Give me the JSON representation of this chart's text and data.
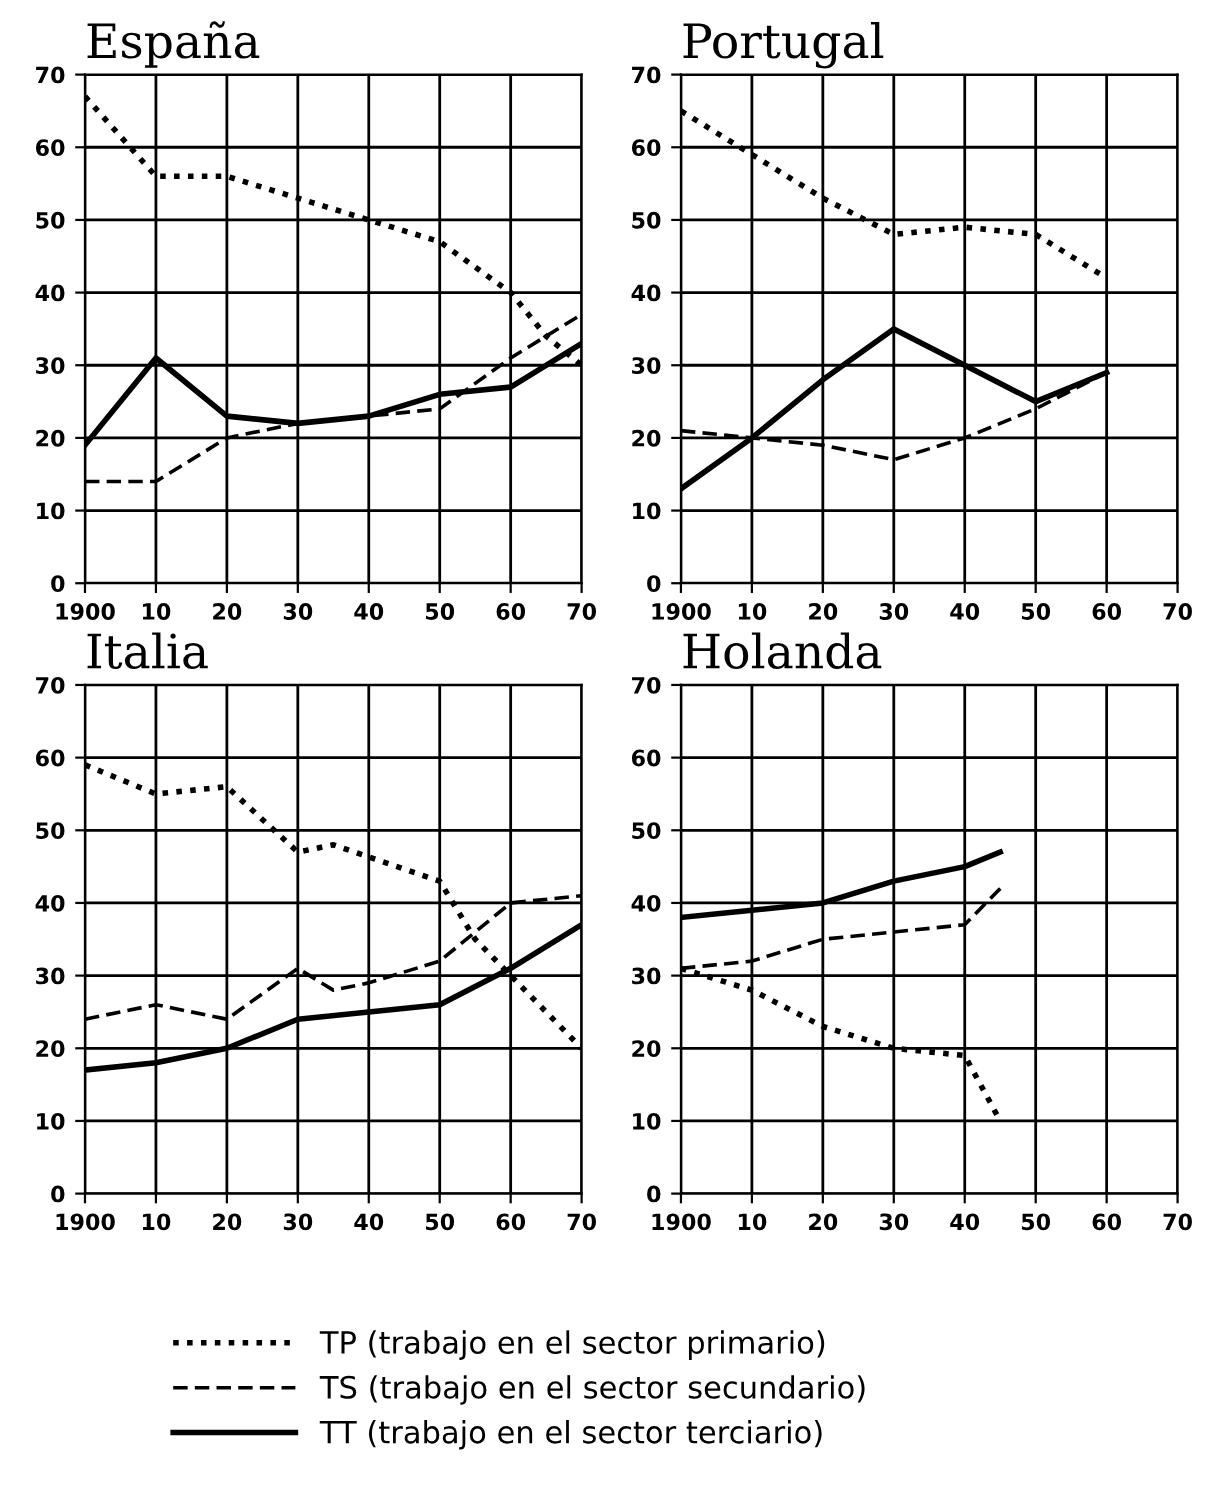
{
  "chart_data": [
    {
      "type": "line",
      "title": "España",
      "x": [
        1900,
        1910,
        1920,
        1930,
        1940,
        1950,
        1960,
        1970
      ],
      "xlim": [
        1900,
        1970
      ],
      "xticks": [
        {
          "value": 1900,
          "label": "1900"
        },
        {
          "value": 1910,
          "label": "10"
        },
        {
          "value": 1920,
          "label": "20"
        },
        {
          "value": 1930,
          "label": "30"
        },
        {
          "value": 1940,
          "label": "40"
        },
        {
          "value": 1950,
          "label": "50"
        },
        {
          "value": 1960,
          "label": "60"
        },
        {
          "value": 1970,
          "label": "70"
        }
      ],
      "ylim": [
        0,
        70
      ],
      "yticks": [
        0,
        10,
        20,
        30,
        40,
        50,
        60,
        70
      ],
      "grid": true,
      "legend": false,
      "series": [
        {
          "color": "#000000",
          "line_style": "dotted",
          "x": [
            1900,
            1910,
            1920,
            1930,
            1940,
            1950,
            1960,
            1965,
            1970
          ],
          "values": [
            67,
            56,
            56,
            53,
            50,
            47,
            40,
            34,
            30
          ]
        },
        {
          "color": "#000000",
          "line_style": "dashed",
          "values": [
            14,
            14,
            20,
            22,
            23,
            24,
            31,
            37
          ]
        },
        {
          "color": "#000000",
          "line_style": "solid",
          "values": [
            19,
            31,
            23,
            22,
            23,
            26,
            27,
            33
          ]
        }
      ]
    },
    {
      "type": "line",
      "title": "Portugal",
      "x": [
        1900,
        1910,
        1920,
        1930,
        1940,
        1950,
        1960
      ],
      "xlim": [
        1900,
        1970
      ],
      "xticks": [
        {
          "value": 1900,
          "label": "1900"
        },
        {
          "value": 1910,
          "label": "10"
        },
        {
          "value": 1920,
          "label": "20"
        },
        {
          "value": 1930,
          "label": "30"
        },
        {
          "value": 1940,
          "label": "40"
        },
        {
          "value": 1950,
          "label": "50"
        },
        {
          "value": 1960,
          "label": "60"
        },
        {
          "value": 1970,
          "label": "70"
        }
      ],
      "ylim": [
        0,
        70
      ],
      "yticks": [
        0,
        10,
        20,
        30,
        40,
        50,
        60,
        70
      ],
      "grid": true,
      "legend": false,
      "series": [
        {
          "color": "#000000",
          "line_style": "dotted",
          "values": [
            65,
            59,
            53,
            48,
            49,
            48,
            42
          ]
        },
        {
          "color": "#000000",
          "line_style": "dashed",
          "values": [
            21,
            20,
            19,
            17,
            20,
            24,
            29
          ]
        },
        {
          "color": "#000000",
          "line_style": "solid",
          "values": [
            13,
            20,
            28,
            35,
            30,
            25,
            29
          ]
        }
      ]
    },
    {
      "type": "line",
      "title": "Italia",
      "xlim": [
        1900,
        1970
      ],
      "xticks": [
        {
          "value": 1900,
          "label": "1900"
        },
        {
          "value": 1910,
          "label": "10"
        },
        {
          "value": 1920,
          "label": "20"
        },
        {
          "value": 1930,
          "label": "30"
        },
        {
          "value": 1940,
          "label": "40"
        },
        {
          "value": 1950,
          "label": "50"
        },
        {
          "value": 1960,
          "label": "60"
        },
        {
          "value": 1970,
          "label": "70"
        }
      ],
      "ylim": [
        0,
        70
      ],
      "yticks": [
        0,
        10,
        20,
        30,
        40,
        50,
        60,
        70
      ],
      "grid": true,
      "legend": false,
      "series": [
        {
          "color": "#000000",
          "line_style": "dotted",
          "x": [
            1900,
            1910,
            1920,
            1930,
            1935,
            1950,
            1955,
            1960,
            1970
          ],
          "values": [
            59,
            55,
            56,
            47,
            48,
            43,
            35,
            30,
            20
          ]
        },
        {
          "color": "#000000",
          "line_style": "dashed",
          "x": [
            1900,
            1910,
            1920,
            1930,
            1935,
            1940,
            1950,
            1960,
            1970
          ],
          "values": [
            24,
            26,
            24,
            31,
            28,
            29,
            32,
            40,
            41
          ]
        },
        {
          "color": "#000000",
          "line_style": "solid",
          "x": [
            1900,
            1910,
            1920,
            1930,
            1940,
            1950,
            1960,
            1970
          ],
          "values": [
            17,
            18,
            20,
            24,
            25,
            26,
            31,
            37
          ]
        }
      ]
    },
    {
      "type": "line",
      "title": "Holanda",
      "x": [
        1900,
        1910,
        1920,
        1930,
        1940,
        1945
      ],
      "xlim": [
        1900,
        1970
      ],
      "xticks": [
        {
          "value": 1900,
          "label": "1900"
        },
        {
          "value": 1910,
          "label": "10"
        },
        {
          "value": 1920,
          "label": "20"
        },
        {
          "value": 1930,
          "label": "30"
        },
        {
          "value": 1940,
          "label": "40"
        },
        {
          "value": 1950,
          "label": "50"
        },
        {
          "value": 1960,
          "label": "60"
        },
        {
          "value": 1970,
          "label": "70"
        }
      ],
      "ylim": [
        0,
        70
      ],
      "yticks": [
        0,
        10,
        20,
        30,
        40,
        50,
        60,
        70
      ],
      "grid": true,
      "legend": "bottom",
      "series": [
        {
          "name": "TP (trabajo en el sector primario)",
          "color": "#000000",
          "line_style": "dotted",
          "values": [
            31,
            28,
            23,
            20,
            19,
            10
          ]
        },
        {
          "name": "TS (trabajo en el sector secundario)",
          "color": "#000000",
          "line_style": "dashed",
          "values": [
            31,
            32,
            35,
            36,
            37,
            42
          ]
        },
        {
          "name": "TT (trabajo en el sector terciario)",
          "color": "#000000",
          "line_style": "solid",
          "values": [
            38,
            39,
            40,
            43,
            45,
            47
          ]
        }
      ]
    }
  ]
}
